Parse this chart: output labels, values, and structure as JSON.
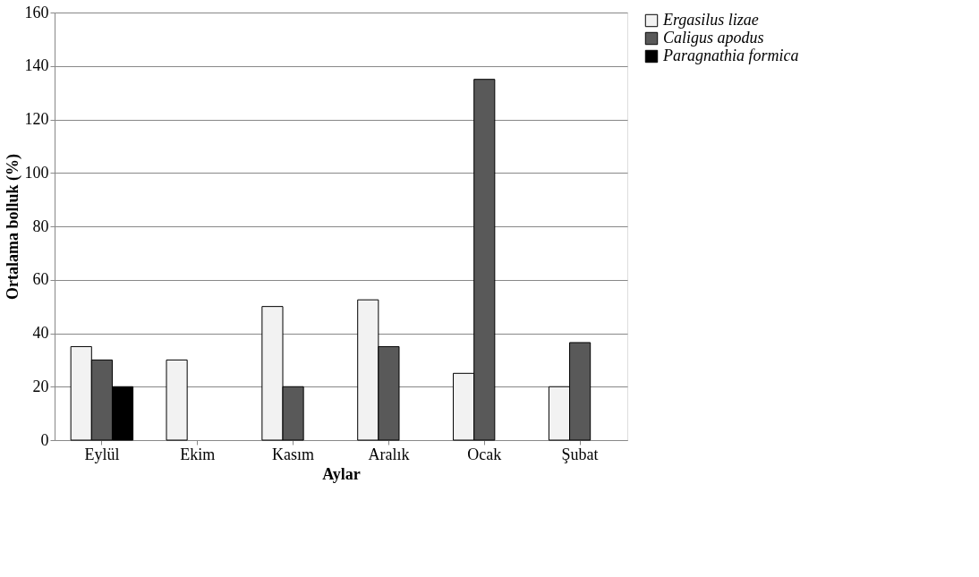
{
  "chart_data": {
    "type": "bar",
    "xlabel": "Aylar",
    "ylabel": "Ortalama bolluk (%)",
    "categories": [
      "Eylül",
      "Ekim",
      "Kasım",
      "Aralık",
      "Ocak",
      "Şubat"
    ],
    "series": [
      {
        "name": "Ergasilus lizae",
        "color": "#f2f2f2",
        "values": [
          35,
          30,
          50,
          52.5,
          25,
          20
        ]
      },
      {
        "name": "Caligus apodus",
        "color": "#595959",
        "values": [
          30,
          null,
          20,
          35,
          135,
          36.5
        ]
      },
      {
        "name": "Paragnathia formica",
        "color": "#000000",
        "values": [
          20,
          null,
          null,
          null,
          null,
          null
        ]
      }
    ],
    "ylim": [
      0,
      160
    ],
    "yticks": [
      0,
      20,
      40,
      60,
      80,
      100,
      120,
      140,
      160
    ],
    "grid": "y",
    "legend": "right"
  }
}
